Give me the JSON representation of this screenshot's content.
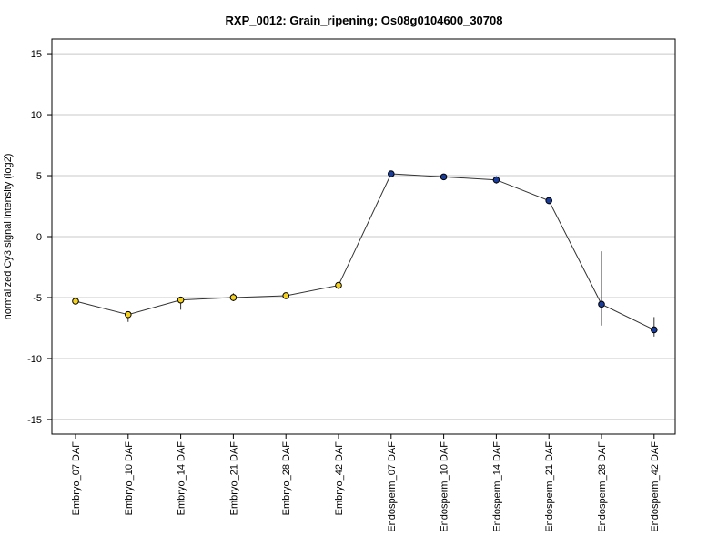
{
  "chart_data": {
    "type": "line",
    "title": "RXP_0012: Grain_ripening; Os08g0104600_30708",
    "ylabel": "normalized Cy3 signal intensity (log2)",
    "xlabel": "",
    "ylim": [
      -16.2,
      16.2
    ],
    "yticks": [
      -15,
      -10,
      -5,
      0,
      5,
      10,
      15
    ],
    "grid": "horizontal",
    "categories": [
      "Embryo_07 DAF",
      "Embryo_10 DAF",
      "Embryo_14 DAF",
      "Embryo_21 DAF",
      "Embryo_28 DAF",
      "Embryo_42 DAF",
      "Endosperm_07 DAF",
      "Endosperm_10 DAF",
      "Endosperm_14 DAF",
      "Endosperm_21 DAF",
      "Endosperm_28 DAF",
      "Endosperm_42 DAF"
    ],
    "values": [
      -5.3,
      -6.4,
      -5.2,
      -5.0,
      -4.85,
      -4.0,
      5.15,
      4.9,
      4.65,
      2.95,
      -5.55,
      -7.65
    ],
    "error_low": [
      -5.3,
      -7.0,
      -6.0,
      -5.3,
      -5.0,
      -4.3,
      5.0,
      4.75,
      4.35,
      2.65,
      -7.3,
      -8.2
    ],
    "error_high": [
      -5.3,
      -6.2,
      -4.95,
      -4.65,
      -4.7,
      -3.75,
      5.3,
      5.05,
      4.95,
      3.25,
      -1.2,
      -6.6
    ],
    "point_colors": [
      "#f5d21f",
      "#f5d21f",
      "#f5d21f",
      "#f5d21f",
      "#f5d21f",
      "#f5d21f",
      "#1a3d9c",
      "#1a3d9c",
      "#1a3d9c",
      "#1a3d9c",
      "#1a3d9c",
      "#1a3d9c"
    ],
    "line_color": "#333333",
    "marker_edge_color": "#000000"
  }
}
